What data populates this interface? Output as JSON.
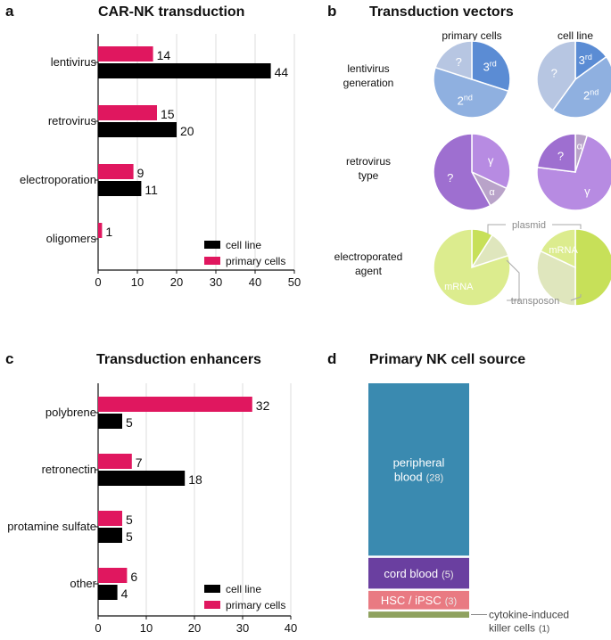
{
  "colors": {
    "primary": "#e0175f",
    "cellline": "#000000",
    "grid": "#dddddd",
    "blue_light": "#b7c6e2",
    "blue_mid": "#8fb0e0",
    "blue_dark": "#5b8cd4",
    "purple_light": "#b78be2",
    "purple_mid": "#9e6fd0",
    "purple_grey": "#b9a3c9",
    "green_bright": "#c7e059",
    "green_light": "#dcec8e",
    "green_pale": "#dfe6bd",
    "nk_pb": "#3a8ab0",
    "nk_cb": "#6a3fa0",
    "nk_hsc": "#e97a82",
    "nk_cik": "#8fa25f"
  },
  "panels": {
    "a": {
      "letter": "a",
      "title": "CAR-NK transduction"
    },
    "b": {
      "letter": "b",
      "title": "Transduction vectors"
    },
    "c": {
      "letter": "c",
      "title": "Transduction enhancers"
    },
    "d": {
      "letter": "d",
      "title": "Primary NK cell source"
    }
  },
  "chart_data": [
    {
      "id": "a",
      "type": "bar",
      "orientation": "horizontal",
      "title": "CAR-NK transduction",
      "categories": [
        "lentivirus",
        "retrovirus",
        "electroporation",
        "oligomers"
      ],
      "series": [
        {
          "name": "primary cells",
          "values": [
            14,
            15,
            9,
            1
          ]
        },
        {
          "name": "cell line",
          "values": [
            44,
            20,
            11,
            0
          ]
        }
      ],
      "value_labels": {
        "primary cells": [
          "14",
          "15",
          "9",
          "1"
        ],
        "cell line": [
          "44",
          "20",
          "11",
          ""
        ]
      },
      "xlim": [
        0,
        50
      ],
      "xticks": [
        "0",
        "10",
        "20",
        "30",
        "40",
        "50"
      ],
      "legend": [
        "cell line",
        "primary cells"
      ],
      "legend_position": "bottom-right",
      "grid": true
    },
    {
      "id": "b",
      "type": "pie",
      "title": "Transduction vectors",
      "columns": [
        "primary cells",
        "cell line"
      ],
      "rows": [
        {
          "label_lines": [
            "lentivirus",
            "generation"
          ],
          "pies": [
            {
              "slices": [
                {
                  "label": "3rd",
                  "base": "3",
                  "sup": "rd",
                  "value": 0.3
                },
                {
                  "label": "2nd",
                  "base": "2",
                  "sup": "nd",
                  "value": 0.5
                },
                {
                  "label": "?",
                  "value": 0.2
                }
              ]
            },
            {
              "slices": [
                {
                  "label": "3rd",
                  "base": "3",
                  "sup": "rd",
                  "value": 0.15
                },
                {
                  "label": "2nd",
                  "base": "2",
                  "sup": "nd",
                  "value": 0.45
                },
                {
                  "label": "?",
                  "value": 0.4
                }
              ]
            }
          ]
        },
        {
          "label_lines": [
            "retrovirus",
            "type"
          ],
          "pies": [
            {
              "slices": [
                {
                  "label": "γ",
                  "value": 0.32
                },
                {
                  "label": "α",
                  "value": 0.1
                },
                {
                  "label": "?",
                  "value": 0.58
                }
              ]
            },
            {
              "slices": [
                {
                  "label": "α",
                  "value": 0.05
                },
                {
                  "label": "γ",
                  "value": 0.72
                },
                {
                  "label": "?",
                  "value": 0.23
                }
              ]
            }
          ]
        },
        {
          "label_lines": [
            "electroporated",
            "agent"
          ],
          "pies": [
            {
              "slices": [
                {
                  "label": "plasmid",
                  "value": 0.09
                },
                {
                  "label": "transposon",
                  "value": 0.11
                },
                {
                  "label": "mRNA",
                  "value": 0.8
                }
              ]
            },
            {
              "slices": [
                {
                  "label": "plasmid",
                  "value": 0.5
                },
                {
                  "label": "transposon",
                  "value": 0.32
                },
                {
                  "label": "mRNA",
                  "value": 0.18
                }
              ]
            }
          ]
        }
      ],
      "callouts": {
        "plasmid": "plasmid",
        "transposon": "transposon"
      }
    },
    {
      "id": "c",
      "type": "bar",
      "orientation": "horizontal",
      "title": "Transduction enhancers",
      "categories": [
        "polybrene",
        "retronectin",
        "protamine sulfate",
        "other"
      ],
      "series": [
        {
          "name": "primary cells",
          "values": [
            32,
            7,
            5,
            6
          ]
        },
        {
          "name": "cell line",
          "values": [
            5,
            18,
            5,
            4
          ]
        }
      ],
      "value_labels": {
        "primary cells": [
          "32",
          "7",
          "5",
          "6"
        ],
        "cell line": [
          "5",
          "18",
          "5",
          "4"
        ]
      },
      "xlim": [
        0,
        40
      ],
      "xticks": [
        "0",
        "10",
        "20",
        "30",
        "40"
      ],
      "legend": [
        "cell line",
        "primary cells"
      ],
      "legend_position": "bottom-right",
      "grid": true
    },
    {
      "id": "d",
      "type": "bar",
      "subtype": "stacked-single",
      "title": "Primary NK cell source",
      "segments": [
        {
          "label_lines": [
            "peripheral",
            "blood"
          ],
          "count_text": "(28)",
          "value": 28
        },
        {
          "label_lines": [
            "cord blood"
          ],
          "count_text": "(5)",
          "value": 5
        },
        {
          "label_lines": [
            "HSC / iPSC"
          ],
          "count_text": "(3)",
          "value": 3
        },
        {
          "label_lines": [
            "cytokine-induced",
            "killer cells"
          ],
          "count_text": "(1)",
          "value": 1
        }
      ],
      "total": 37
    }
  ]
}
